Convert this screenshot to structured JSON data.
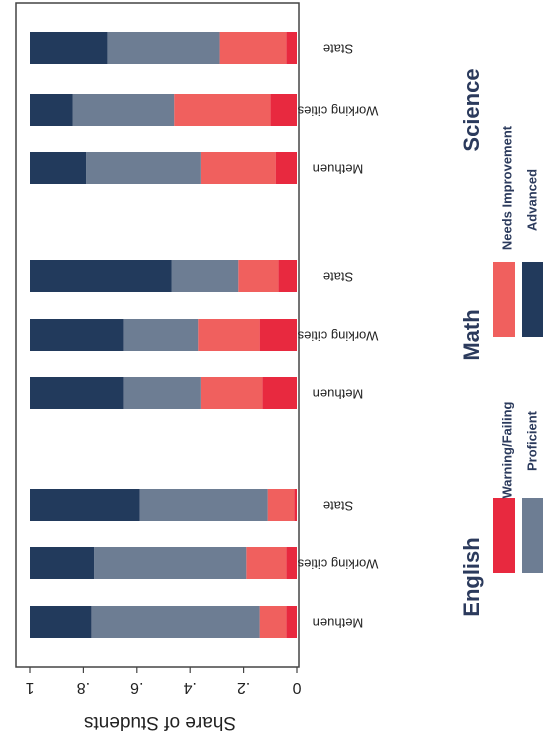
{
  "chart_data": {
    "type": "bar",
    "orientation": "horizontal-stacked-rotated",
    "ylabel": "Share of Students",
    "ylim": [
      0,
      1
    ],
    "ticks": [
      "0",
      ".2",
      ".4",
      ".6",
      ".8",
      "1"
    ],
    "grid": false,
    "legend_position": "bottom",
    "groups": [
      {
        "name": "English",
        "bars": [
          {
            "category": "Methuen",
            "values": [
              0.04,
              0.1,
              0.63,
              0.23
            ]
          },
          {
            "category": "Working cities",
            "values": [
              0.04,
              0.15,
              0.57,
              0.24
            ]
          },
          {
            "category": "State",
            "values": [
              0.01,
              0.1,
              0.48,
              0.41
            ]
          }
        ]
      },
      {
        "name": "Math",
        "bars": [
          {
            "category": "Methuen",
            "values": [
              0.13,
              0.23,
              0.29,
              0.35
            ]
          },
          {
            "category": "Working cities",
            "values": [
              0.14,
              0.23,
              0.28,
              0.35
            ]
          },
          {
            "category": "State",
            "values": [
              0.07,
              0.15,
              0.25,
              0.53
            ]
          }
        ]
      },
      {
        "name": "Science",
        "bars": [
          {
            "category": "Methuen",
            "values": [
              0.08,
              0.28,
              0.43,
              0.21
            ]
          },
          {
            "category": "Working cities",
            "values": [
              0.1,
              0.36,
              0.38,
              0.16
            ]
          },
          {
            "category": "State",
            "values": [
              0.04,
              0.25,
              0.42,
              0.29
            ]
          }
        ]
      }
    ],
    "series": [
      {
        "name": "Warning/Failing",
        "color": "#e8293f"
      },
      {
        "name": "Needs Improvement",
        "color": "#f0605e"
      },
      {
        "name": "Proficient",
        "color": "#6d7d93"
      },
      {
        "name": "Advanced",
        "color": "#223a5c"
      }
    ]
  }
}
